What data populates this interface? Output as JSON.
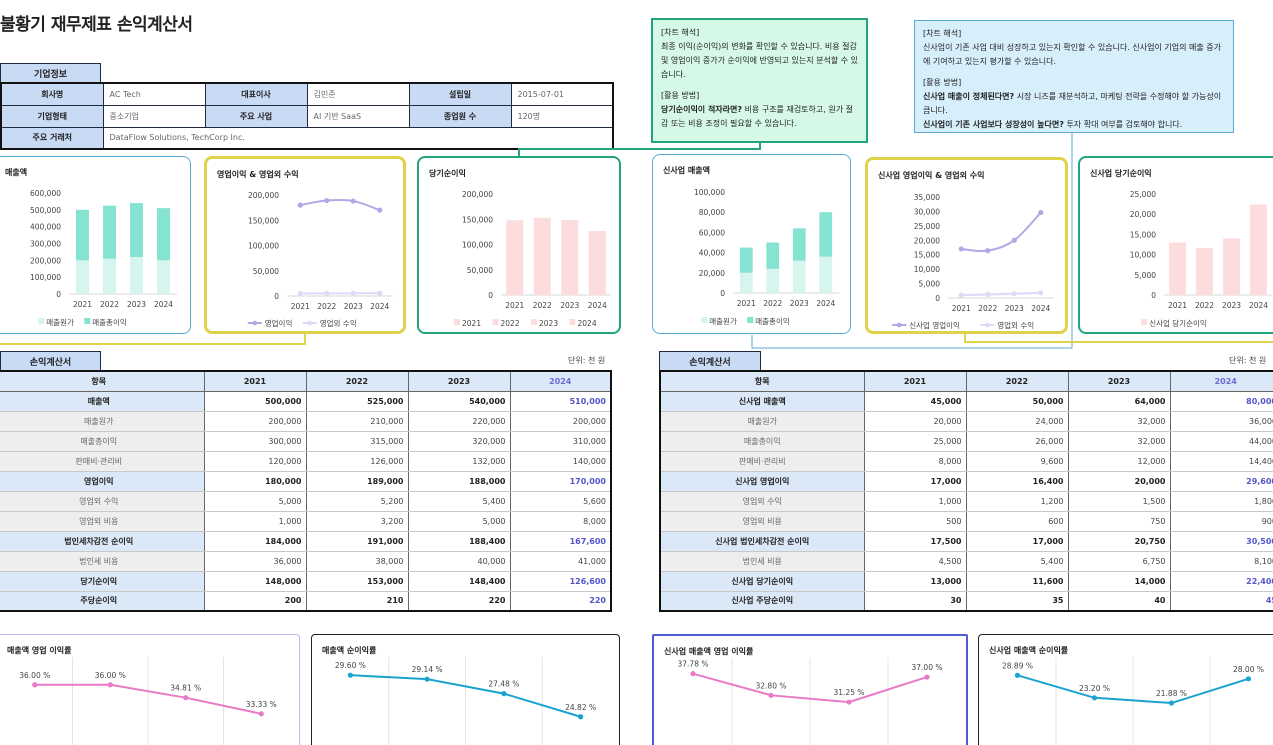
{
  "title": "불황기 재무제표 손익계산서",
  "company_section": {
    "tag": "기업정보",
    "rows": [
      [
        {
          "l": "회사명",
          "v": "AC Tech"
        },
        {
          "l": "대표이사",
          "v": "김민준"
        },
        {
          "l": "설립일",
          "v": "2015-07-01"
        }
      ],
      [
        {
          "l": "기업형태",
          "v": "중소기업"
        },
        {
          "l": "주요 사업",
          "v": "AI 기반 SaaS"
        },
        {
          "l": "종업원 수",
          "v": "120명"
        }
      ]
    ],
    "partners_label": "주요 거래처",
    "partners_value": "DataFlow Solutions, TechCorp Inc."
  },
  "note1": {
    "heading": "[차트 해석]",
    "body": "최종 이익(순이익)의 변화를 확인할 수 있습니다. 비용 절감 및 영업이익 증가가 순이익에 반영되고 있는지 분석할 수 있습니다.",
    "heading2": "[활용 방법]",
    "bold": "당기순이익이 적자라면?",
    "tail": " 비용 구조를 재검토하고, 원가 절감 또는 비용 조정이 필요할 수 있습니다."
  },
  "note2": {
    "heading": "[차트 해석]",
    "body": "신사업이 기존 사업 대비 성장하고 있는지 확인할 수 있습니다. 신사업이 기업의 매출 증가에 기여하고 있는지 평가할 수 있습니다.",
    "heading2": "[활용 방법]",
    "bold1": "신사업 매출이 정체된다면?",
    "tail1": " 시장 니즈를 재분석하고, 마케팅 전략을 수정해야 할 가능성이 큽니다.",
    "bold2": "신사업이 기존 사업보다 성장성이 높다면?",
    "tail2": " 투자 확대 여부를 검토해야 합니다."
  },
  "left_table": {
    "tag": "손익계산서",
    "unit": "단위: 천 원",
    "headers": [
      "항목",
      "2021",
      "2022",
      "2023",
      "2024"
    ],
    "rows": [
      {
        "kind": "main",
        "name": "매출액",
        "vals": [
          "500,000",
          "525,000",
          "540,000",
          "510,000"
        ]
      },
      {
        "kind": "sub",
        "name": "매출원가",
        "vals": [
          "200,000",
          "210,000",
          "220,000",
          "200,000"
        ]
      },
      {
        "kind": "sub",
        "name": "매출총이익",
        "vals": [
          "300,000",
          "315,000",
          "320,000",
          "310,000"
        ]
      },
      {
        "kind": "sub",
        "name": "판매비·관리비",
        "vals": [
          "120,000",
          "126,000",
          "132,000",
          "140,000"
        ]
      },
      {
        "kind": "main",
        "name": "영업이익",
        "vals": [
          "180,000",
          "189,000",
          "188,000",
          "170,000"
        ]
      },
      {
        "kind": "sub",
        "name": "영업외 수익",
        "vals": [
          "5,000",
          "5,200",
          "5,400",
          "5,600"
        ]
      },
      {
        "kind": "sub",
        "name": "영업외 비용",
        "vals": [
          "1,000",
          "3,200",
          "5,000",
          "8,000"
        ]
      },
      {
        "kind": "main",
        "name": "법인세차감전 순이익",
        "vals": [
          "184,000",
          "191,000",
          "188,400",
          "167,600"
        ]
      },
      {
        "kind": "sub",
        "name": "법인세 비용",
        "vals": [
          "36,000",
          "38,000",
          "40,000",
          "41,000"
        ]
      },
      {
        "kind": "main",
        "name": "당기순이익",
        "vals": [
          "148,000",
          "153,000",
          "148,400",
          "126,600"
        ]
      },
      {
        "kind": "main",
        "name": "주당순이익",
        "vals": [
          "200",
          "210",
          "220",
          "220"
        ]
      }
    ]
  },
  "right_table": {
    "tag": "손익계산서",
    "unit": "단위: 천 원",
    "headers": [
      "항목",
      "2021",
      "2022",
      "2023",
      "2024"
    ],
    "rows": [
      {
        "kind": "main",
        "name": "신사업 매출액",
        "vals": [
          "45,000",
          "50,000",
          "64,000",
          "80,000"
        ]
      },
      {
        "kind": "sub",
        "name": "매출원가",
        "vals": [
          "20,000",
          "24,000",
          "32,000",
          "36,000"
        ]
      },
      {
        "kind": "sub",
        "name": "매출총이익",
        "vals": [
          "25,000",
          "26,000",
          "32,000",
          "44,000"
        ]
      },
      {
        "kind": "sub",
        "name": "판매비·관리비",
        "vals": [
          "8,000",
          "9,600",
          "12,000",
          "14,400"
        ]
      },
      {
        "kind": "main",
        "name": "신사업 영업이익",
        "vals": [
          "17,000",
          "16,400",
          "20,000",
          "29,600"
        ]
      },
      {
        "kind": "sub",
        "name": "영업외 수익",
        "vals": [
          "1,000",
          "1,200",
          "1,500",
          "1,800"
        ]
      },
      {
        "kind": "sub",
        "name": "영업외 비용",
        "vals": [
          "500",
          "600",
          "750",
          "900"
        ]
      },
      {
        "kind": "main",
        "name": "신사업 법인세차감전 순이익",
        "vals": [
          "17,500",
          "17,000",
          "20,750",
          "30,500"
        ]
      },
      {
        "kind": "sub",
        "name": "법인세 비용",
        "vals": [
          "4,500",
          "5,400",
          "6,750",
          "8,100"
        ]
      },
      {
        "kind": "main",
        "name": "신사업 당기순이익",
        "vals": [
          "13,000",
          "11,600",
          "14,000",
          "22,400"
        ]
      },
      {
        "kind": "main",
        "name": "신사업 주당순이익",
        "vals": [
          "30",
          "35",
          "40",
          "45"
        ]
      }
    ]
  },
  "chart_data": [
    {
      "id": "c1",
      "type": "bar",
      "title": "매출액",
      "categories": [
        "2021",
        "2022",
        "2023",
        "2024"
      ],
      "stacked": true,
      "series": [
        {
          "name": "매출원가",
          "values": [
            200000,
            210000,
            220000,
            200000
          ]
        },
        {
          "name": "매출총이익",
          "values": [
            300000,
            315000,
            320000,
            310000
          ]
        }
      ],
      "ylim": [
        0,
        600000
      ],
      "yticks": [
        "0",
        "100,000",
        "200,000",
        "300,000",
        "400,000",
        "500,000",
        "600,000"
      ]
    },
    {
      "id": "c2",
      "type": "line",
      "title": "영업이익 & 영업외 수익",
      "categories": [
        "2021",
        "2022",
        "2023",
        "2024"
      ],
      "series": [
        {
          "name": "영업이익",
          "values": [
            180000,
            189000,
            188000,
            170000
          ]
        },
        {
          "name": "영업외 수익",
          "values": [
            5000,
            5200,
            5400,
            5600
          ]
        }
      ],
      "ylim": [
        0,
        200000
      ],
      "yticks": [
        "0",
        "50,000",
        "100,000",
        "150,000",
        "200,000"
      ]
    },
    {
      "id": "c3",
      "type": "bar",
      "title": "당기순이익",
      "categories": [
        "2021",
        "2022",
        "2023",
        "2024"
      ],
      "series": [
        {
          "name": "당기순이익",
          "values": [
            148000,
            153000,
            148400,
            126600
          ]
        }
      ],
      "legend": [
        "2021",
        "2022",
        "2023",
        "2024"
      ],
      "ylim": [
        0,
        200000
      ],
      "yticks": [
        "0",
        "50,000",
        "100,000",
        "150,000",
        "200,000"
      ]
    },
    {
      "id": "c4",
      "type": "bar",
      "title": "신사업 매출액",
      "categories": [
        "2021",
        "2022",
        "2023",
        "2024"
      ],
      "stacked": true,
      "series": [
        {
          "name": "매출원가",
          "values": [
            20000,
            24000,
            32000,
            36000
          ]
        },
        {
          "name": "매출총이익",
          "values": [
            25000,
            26000,
            32000,
            44000
          ]
        }
      ],
      "ylim": [
        0,
        100000
      ],
      "yticks": [
        "0",
        "20,000",
        "40,000",
        "60,000",
        "80,000",
        "100,000"
      ]
    },
    {
      "id": "c5",
      "type": "line",
      "title": "신사업 영업이익 & 영업외 수익",
      "categories": [
        "2021",
        "2022",
        "2023",
        "2024"
      ],
      "series": [
        {
          "name": "신사업 영업이익",
          "values": [
            17000,
            16400,
            20000,
            29600
          ]
        },
        {
          "name": "영업외 수익",
          "values": [
            1000,
            1200,
            1500,
            1800
          ]
        }
      ],
      "ylim": [
        0,
        35000
      ],
      "yticks": [
        "0",
        "5,000",
        "10,000",
        "15,000",
        "20,000",
        "25,000",
        "30,000",
        "35,000"
      ]
    },
    {
      "id": "c6",
      "type": "bar",
      "title": "신사업 당기순이익",
      "categories": [
        "2021",
        "2022",
        "2023",
        "2024"
      ],
      "series": [
        {
          "name": "신사업 당기순이익",
          "values": [
            13000,
            11600,
            14000,
            22400
          ]
        }
      ],
      "ylim": [
        0,
        25000
      ],
      "yticks": [
        "0",
        "5,000",
        "10,000",
        "15,000",
        "20,000",
        "25,000"
      ]
    },
    {
      "id": "c7",
      "type": "line",
      "title": "매출액 영업 이익률",
      "categories": [
        "2021",
        "2022",
        "2023",
        "2024"
      ],
      "series": [
        {
          "values": [
            36.0,
            36.0,
            34.81,
            33.33
          ],
          "labels": [
            "36.00 %",
            "36.00 %",
            "34.81 %",
            "33.33 %"
          ]
        }
      ],
      "ylim": [
        30,
        38
      ]
    },
    {
      "id": "c8",
      "type": "line",
      "title": "매출액 순이익률",
      "categories": [
        "2021",
        "2022",
        "2023",
        "2024"
      ],
      "series": [
        {
          "values": [
            29.6,
            29.14,
            27.48,
            24.82
          ],
          "labels": [
            "29.60 %",
            "29.14 %",
            "27.48 %",
            "24.82 %"
          ]
        }
      ],
      "ylim": [
        21,
        31
      ]
    },
    {
      "id": "c9",
      "type": "line",
      "title": "신사업 매출액 영업 이익률",
      "categories": [
        "2021",
        "2022",
        "2023",
        "2024"
      ],
      "series": [
        {
          "values": [
            37.78,
            32.8,
            31.25,
            37.0
          ],
          "labels": [
            "37.78 %",
            "32.80 %",
            "31.25 %",
            "37.00 %"
          ]
        }
      ],
      "ylim": [
        20,
        40
      ]
    },
    {
      "id": "c10",
      "type": "line",
      "title": "신사업 매출액 순이익률",
      "categories": [
        "2021",
        "2022",
        "2023",
        "2024"
      ],
      "series": [
        {
          "values": [
            28.89,
            23.2,
            21.88,
            28.0
          ],
          "labels": [
            "28.89 %",
            "23.20 %",
            "21.88 %",
            "28.00 %"
          ]
        }
      ],
      "ylim": [
        10,
        32
      ]
    }
  ],
  "colors": {
    "tag_bg": "#c9daf5",
    "mint": "#85e3d1",
    "mint_light": "#d6f5ee",
    "lavender": "#b3a7e6",
    "lavender_light": "#ddd9f7",
    "pink_bar": "#fcdcdc",
    "pink_line": "#e87ac6",
    "cyan_line": "#1aa3cf",
    "highlight": "#6b6bd6"
  }
}
